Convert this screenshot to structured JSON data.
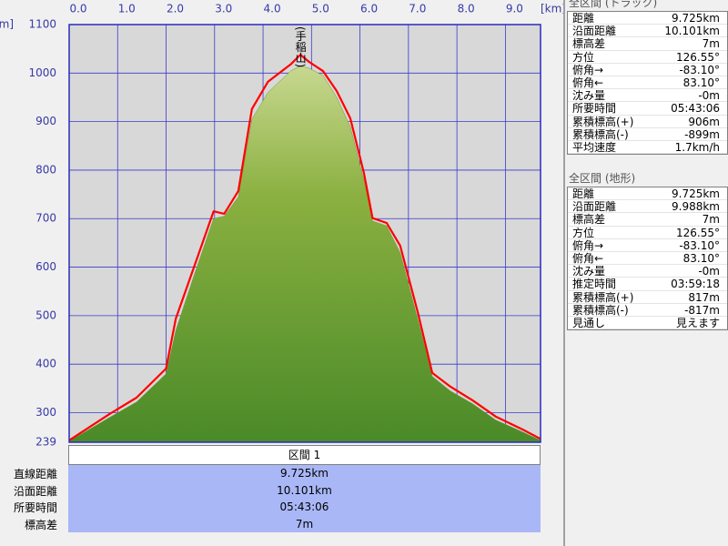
{
  "chart_data": {
    "type": "area",
    "x_unit": "[km]",
    "y_unit": "[m]",
    "xlim": [
      0,
      9.725
    ],
    "ylim": [
      239,
      1100
    ],
    "xticks": [
      {
        "value": 0,
        "label": "0.0"
      },
      {
        "value": 1,
        "label": "1.0"
      },
      {
        "value": 2,
        "label": "2.0"
      },
      {
        "value": 3,
        "label": "3.0"
      },
      {
        "value": 4,
        "label": "4.0"
      },
      {
        "value": 5,
        "label": "5.0"
      },
      {
        "value": 6,
        "label": "6.0"
      },
      {
        "value": 7,
        "label": "7.0"
      },
      {
        "value": 8,
        "label": "8.0"
      },
      {
        "value": 9,
        "label": "9.0"
      }
    ],
    "yticks": [
      239,
      300,
      400,
      500,
      600,
      700,
      800,
      900,
      1000,
      1100
    ],
    "grid": true,
    "x": [
      0,
      0.83,
      1.39,
      2.0,
      2.2,
      2.6,
      2.98,
      3.2,
      3.49,
      3.77,
      4.1,
      4.58,
      4.77,
      4.95,
      5.24,
      5.52,
      5.8,
      6.08,
      6.26,
      6.55,
      6.83,
      7.2,
      7.49,
      7.86,
      8.33,
      8.8,
      9.36,
      9.725
    ],
    "series": [
      {
        "color": "#6a9a30",
        "fill": true,
        "values": [
          241,
          290,
          322,
          380,
          470,
          590,
          700,
          705,
          745,
          905,
          960,
          1005,
          1015,
          1010,
          995,
          950,
          890,
          780,
          695,
          685,
          630,
          490,
          375,
          345,
          318,
          285,
          260,
          243
        ]
      },
      {
        "color": "#ff0000",
        "fill": false,
        "values": [
          243,
          297,
          331,
          391,
          494,
          607,
          715,
          710,
          757,
          926,
          982,
          1019,
          1038,
          1023,
          1004,
          963,
          907,
          795,
          701,
          691,
          644,
          504,
          382,
          354,
          325,
          292,
          265,
          246
        ]
      }
    ],
    "annotations": [
      {
        "text": "(手稲山)",
        "x": 4.77,
        "y": 1038
      }
    ]
  },
  "section": {
    "title": "区間 1",
    "rows": [
      {
        "label": "直線距離",
        "value": "9.725km"
      },
      {
        "label": "沿面距離",
        "value": "10.101km"
      },
      {
        "label": "所要時間",
        "value": "05:43:06"
      },
      {
        "label": "標高差",
        "value": "7m"
      }
    ]
  },
  "track_summary": {
    "title": "全区間 (トラック)",
    "rows": [
      {
        "label": "距離",
        "value": "9.725km"
      },
      {
        "label": "沿面距離",
        "value": "10.101km"
      },
      {
        "label": "標高差",
        "value": "7m"
      },
      {
        "label": "方位",
        "value": "126.55°"
      },
      {
        "label": "俯角→",
        "value": "-83.10°"
      },
      {
        "label": "俯角←",
        "value": "83.10°"
      },
      {
        "label": "沈み量",
        "value": "-0m"
      },
      {
        "label": "所要時間",
        "value": "05:43:06"
      },
      {
        "label": "累積標高(+)",
        "value": "906m"
      },
      {
        "label": "累積標高(-)",
        "value": "-899m"
      },
      {
        "label": "平均速度",
        "value": "1.7km/h"
      }
    ]
  },
  "terrain_summary": {
    "title": "全区間 (地形)",
    "rows": [
      {
        "label": "距離",
        "value": "9.725km"
      },
      {
        "label": "沿面距離",
        "value": "9.988km"
      },
      {
        "label": "標高差",
        "value": "7m"
      },
      {
        "label": "方位",
        "value": "126.55°"
      },
      {
        "label": "俯角→",
        "value": "-83.10°"
      },
      {
        "label": "俯角←",
        "value": "83.10°"
      },
      {
        "label": "沈み量",
        "value": "-0m"
      },
      {
        "label": "推定時間",
        "value": "03:59:18"
      },
      {
        "label": "累積標高(+)",
        "value": "817m"
      },
      {
        "label": "累積標高(-)",
        "value": "-817m"
      },
      {
        "label": "見通し",
        "value": "見えます"
      }
    ]
  }
}
